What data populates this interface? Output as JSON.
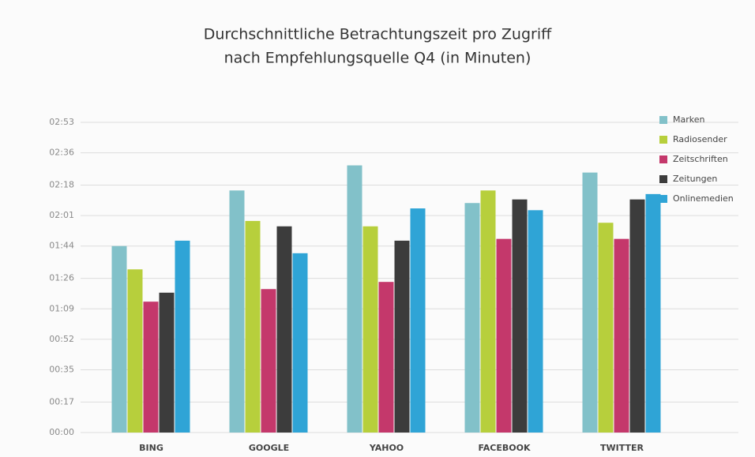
{
  "chart_data": {
    "type": "bar",
    "title": "Durchschnittliche Betrachtungszeit pro Zugriff",
    "subtitle": "nach Empfehlungsquelle Q4 (in Minuten)",
    "categories": [
      "BING",
      "GOOGLE",
      "YAHOO",
      "FACEBOOK",
      "TWITTER"
    ],
    "series": [
      {
        "name": "Marken",
        "color": "#82c1c9",
        "values": [
          104,
          135,
          149,
          128,
          145
        ]
      },
      {
        "name": "Radiosender",
        "color": "#b7cf3c",
        "values": [
          91,
          118,
          115,
          135,
          117
        ]
      },
      {
        "name": "Zeitschriften",
        "color": "#c4386b",
        "values": [
          73,
          80,
          84,
          108,
          108
        ]
      },
      {
        "name": "Zeitungen",
        "color": "#3c3c3c",
        "values": [
          78,
          115,
          107,
          130,
          130
        ]
      },
      {
        "name": "Onlinemedien",
        "color": "#2fa4d6",
        "values": [
          107,
          100,
          125,
          124,
          133
        ]
      }
    ],
    "ylim": [
      0,
      173
    ],
    "yticks": [
      {
        "value": 0,
        "label": "00:00"
      },
      {
        "value": 17,
        "label": "00:17"
      },
      {
        "value": 35,
        "label": "00:35"
      },
      {
        "value": 52,
        "label": "00:52"
      },
      {
        "value": 69,
        "label": "01:09"
      },
      {
        "value": 86,
        "label": "01:26"
      },
      {
        "value": 104,
        "label": "01:44"
      },
      {
        "value": 121,
        "label": "02:01"
      },
      {
        "value": 138,
        "label": "02:18"
      },
      {
        "value": 156,
        "label": "02:36"
      },
      {
        "value": 173,
        "label": "02:53"
      }
    ],
    "grid": true,
    "legend": "right"
  }
}
